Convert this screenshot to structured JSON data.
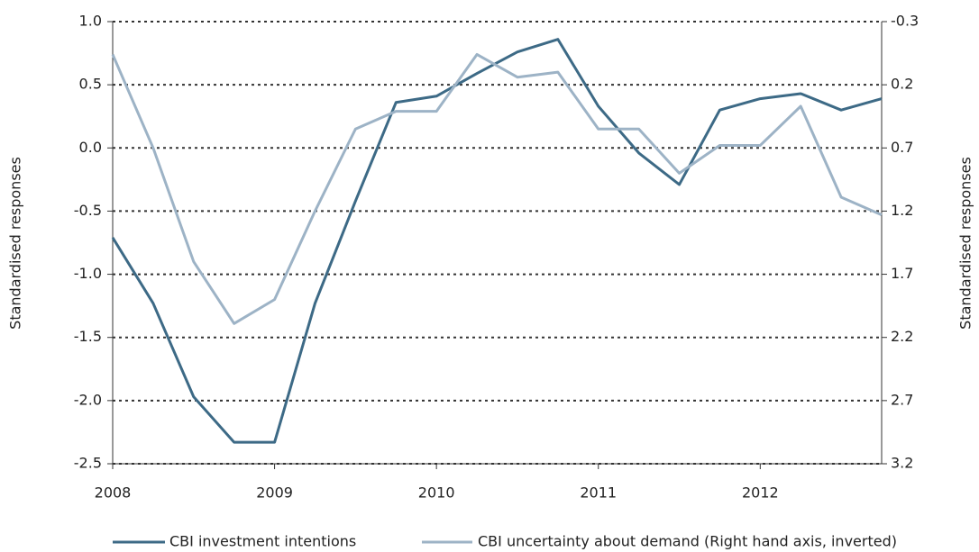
{
  "chart_data": {
    "type": "line",
    "x": [
      2008,
      2008.25,
      2008.5,
      2008.75,
      2009,
      2009.25,
      2009.5,
      2009.75,
      2010,
      2010.25,
      2010.5,
      2010.75,
      2011,
      2011.25,
      2011.5,
      2011.75,
      2012,
      2012.25,
      2012.5,
      2012.75
    ],
    "xlim": [
      2008,
      2012.75
    ],
    "xticks": [
      2008,
      2009,
      2010,
      2011,
      2012
    ],
    "ylabel": "Standardised responses",
    "y2label": "Standardised responses",
    "ylim": [
      -2.5,
      1.0
    ],
    "yticks": [
      {
        "value": -2.5,
        "label": "-2.5"
      },
      {
        "value": -2,
        "label": "-2.0"
      },
      {
        "value": -1.5,
        "label": "-1.5"
      },
      {
        "value": -1,
        "label": "-1.0"
      },
      {
        "value": -0.5,
        "label": "-0.5"
      },
      {
        "value": 0,
        "label": "0.0"
      },
      {
        "value": 0.5,
        "label": "0.5"
      },
      {
        "value": 1,
        "label": "1.0"
      }
    ],
    "y2lim": [
      3.2,
      -0.3
    ],
    "y2ticks": [
      3.2,
      2.7,
      2.2,
      1.7,
      1.2,
      0.7,
      0.2,
      -0.3
    ],
    "grid": true,
    "series": [
      {
        "name": "CBI investment intentions",
        "color": "#3d6a86",
        "values": [
          -0.71,
          -1.23,
          -1.97,
          -2.33,
          -2.33,
          -1.23,
          -0.42,
          0.36,
          0.41,
          0.59,
          0.76,
          0.86,
          0.33,
          -0.04,
          -0.29,
          0.3,
          0.39,
          0.43,
          0.3,
          0.39
        ]
      },
      {
        "name": "CBI uncertainty about demand (Right hand axis, inverted)",
        "color": "#9db3c6",
        "axis": "y2",
        "values": [
          -0.04,
          0.7,
          1.6,
          2.09,
          1.9,
          1.2,
          0.55,
          0.41,
          0.41,
          -0.04,
          0.14,
          0.1,
          0.55,
          0.55,
          0.9,
          0.68,
          0.68,
          0.37,
          1.09,
          1.23
        ]
      }
    ]
  }
}
